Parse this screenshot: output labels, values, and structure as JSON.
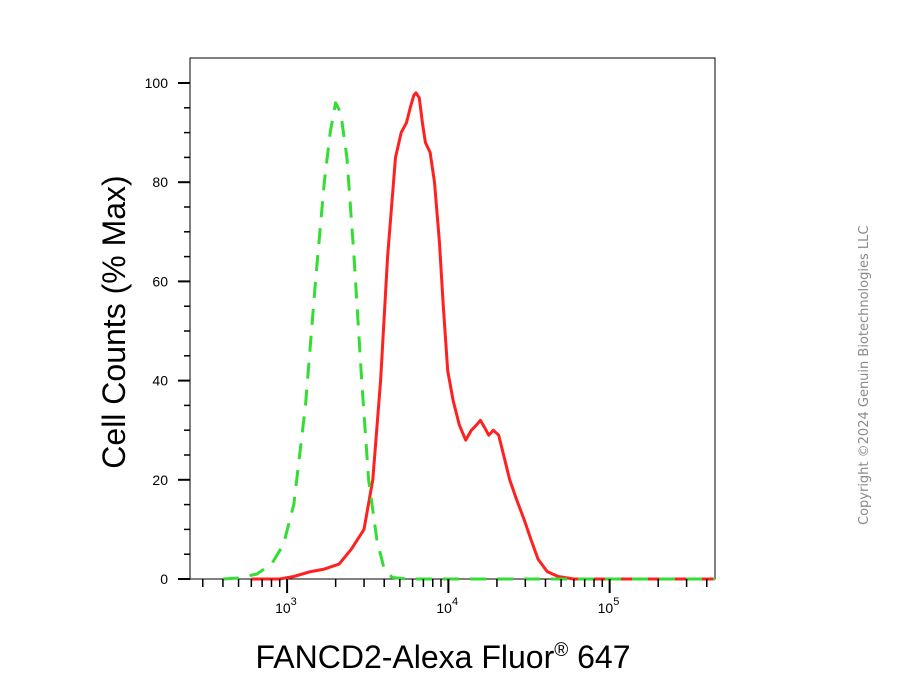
{
  "chart_data": {
    "type": "line",
    "xlabel": "FANCD2-Alexa Fluor",
    "xlabel_sup": "®",
    "xlabel_suffix": " 647",
    "ylabel": "Cell Counts (% Max)",
    "x_scale": "log",
    "xlim": [
      250,
      450000
    ],
    "ylim": [
      0,
      100
    ],
    "x_ticks": [
      {
        "value": 1000,
        "base": "10",
        "exp": "3"
      },
      {
        "value": 10000,
        "base": "10",
        "exp": "4"
      },
      {
        "value": 100000,
        "base": "10",
        "exp": "5"
      }
    ],
    "y_ticks": [
      0,
      20,
      40,
      60,
      80,
      100
    ],
    "grid": false,
    "series": [
      {
        "color": "#ff2020",
        "style": "solid",
        "x": [
          600,
          900,
          1100,
          1400,
          1700,
          2100,
          2500,
          3000,
          3400,
          3800,
          4200,
          4700,
          5100,
          5500,
          5800,
          6100,
          6300,
          6600,
          6900,
          7200,
          7700,
          8200,
          8800,
          9300,
          9900,
          10700,
          11700,
          12800,
          13900,
          14900,
          15800,
          16800,
          17800,
          19000,
          20500,
          22000,
          24000,
          26500,
          29500,
          32500,
          36000,
          41000,
          48000,
          60000,
          100000,
          200000,
          450000
        ],
        "y": [
          0,
          0,
          0.5,
          1.5,
          2,
          3,
          6,
          10,
          20,
          40,
          65,
          85,
          90,
          92,
          95,
          97.5,
          98,
          97,
          92,
          88,
          86,
          80,
          68,
          55,
          42,
          36,
          31,
          28,
          30,
          31,
          32,
          30.5,
          29,
          30,
          29,
          25,
          20,
          16,
          12,
          8,
          4,
          1.5,
          0.5,
          0,
          0,
          0,
          0
        ]
      },
      {
        "color": "#33dd33",
        "style": "dashed",
        "x": [
          400,
          500,
          650,
          800,
          950,
          1100,
          1300,
          1500,
          1700,
          1850,
          2000,
          2150,
          2350,
          2600,
          2900,
          3200,
          3600,
          4000,
          4500,
          5500,
          10000,
          100000,
          450000
        ],
        "y": [
          0,
          0.2,
          1,
          3,
          7,
          15,
          35,
          60,
          80,
          90,
          96,
          94,
          85,
          65,
          40,
          20,
          8,
          2,
          0.3,
          0,
          0,
          0,
          0
        ]
      }
    ]
  },
  "copyright": "Copyright ©2024 Genuin Biotechnologies LLC"
}
